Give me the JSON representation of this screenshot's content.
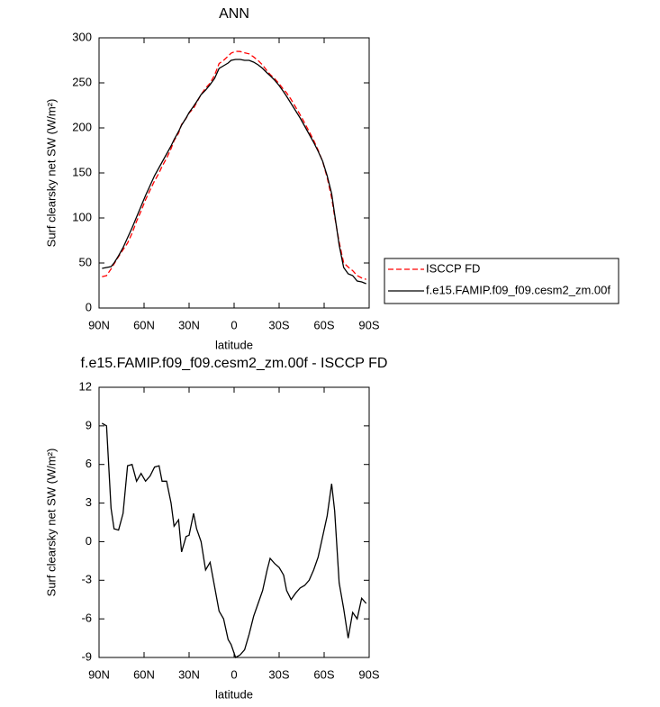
{
  "chart_data": [
    {
      "type": "line",
      "title": "ANN",
      "xlabel": "latitude",
      "ylabel": "Surf clearsky net SW (W/m²)",
      "x": [
        88,
        85,
        82,
        80,
        77,
        74,
        71,
        68,
        65,
        62,
        59,
        56,
        53,
        50,
        48,
        45,
        42,
        40,
        37,
        35,
        32,
        30,
        27,
        25,
        22,
        19,
        16,
        13,
        10,
        7,
        4,
        2,
        -1,
        -4,
        -7,
        -10,
        -13,
        -16,
        -19,
        -22,
        -24,
        -27,
        -30,
        -33,
        -35,
        -38,
        -41,
        -44,
        -47,
        -50,
        -53,
        -56,
        -59,
        -62,
        -65,
        -67,
        -70,
        -73,
        -76,
        -79,
        -82,
        -85,
        -88
      ],
      "xlim": [
        90,
        -90
      ],
      "xticks": [
        {
          "value": 90,
          "label": "90N"
        },
        {
          "value": 60,
          "label": "60N"
        },
        {
          "value": 30,
          "label": "30N"
        },
        0,
        {
          "value": -30,
          "label": "30S"
        },
        {
          "value": -60,
          "label": "60S"
        },
        {
          "value": -90,
          "label": "90S"
        }
      ],
      "ylim": [
        0,
        300
      ],
      "yticks": [
        0,
        50,
        100,
        150,
        200,
        250,
        300
      ],
      "legend": "right",
      "series": [
        {
          "name": "ISCCP FD",
          "color": "#ff0000",
          "dashed": true,
          "values": [
            34.8,
            36.0,
            43.4,
            49.0,
            57.1,
            64.8,
            72.1,
            83.0,
            96.3,
            107.7,
            120.3,
            130.9,
            141.2,
            150.1,
            157.3,
            166.3,
            177.0,
            185.8,
            194.3,
            203.8,
            210.6,
            216.5,
            221.8,
            228.0,
            237.0,
            244.2,
            249.6,
            258.5,
            271.4,
            275.0,
            279.6,
            283.0,
            285.0,
            284.8,
            283.4,
            282.2,
            278.8,
            274.8,
            269.8,
            263.2,
            259.3,
            254.7,
            249.0,
            242.6,
            238.8,
            231.5,
            223.0,
            214.6,
            205.4,
            196.0,
            186.2,
            175.2,
            162.6,
            145.0,
            122.5,
            101.6,
            73.2,
            50.2,
            45.5,
            41.5,
            36.0,
            33.4,
            31.8
          ]
        },
        {
          "name": "f.e15.FAMIP.f09_f09.cesm2_zm.00f",
          "color": "#000000",
          "dashed": false,
          "values": [
            44,
            45,
            46,
            50,
            58,
            67,
            78,
            89,
            101,
            113,
            125,
            136,
            147,
            156,
            162,
            171,
            180,
            187,
            196,
            203,
            211,
            217,
            224,
            229,
            237,
            242,
            248,
            255,
            266,
            269,
            272,
            275,
            276,
            276,
            275,
            275,
            273,
            270,
            266,
            261,
            258,
            253,
            247,
            240,
            235,
            227,
            219,
            211,
            202,
            193,
            184,
            174,
            163,
            147,
            127,
            104,
            70,
            45,
            38,
            36,
            30,
            29,
            27
          ]
        }
      ]
    },
    {
      "type": "line",
      "title": "f.e15.FAMIP.f09_f09.cesm2_zm.00f - ISCCP FD",
      "xlabel": "latitude",
      "ylabel": "Surf clearsky net SW (W/m²)",
      "x": [
        88,
        85,
        82,
        80,
        77,
        74,
        71,
        68,
        65,
        62,
        59,
        56,
        53,
        50,
        48,
        45,
        42,
        40,
        37,
        35,
        32,
        30,
        27,
        25,
        22,
        19,
        16,
        13,
        10,
        7,
        4,
        2,
        -1,
        -4,
        -7,
        -10,
        -13,
        -16,
        -19,
        -22,
        -24,
        -27,
        -30,
        -33,
        -35,
        -38,
        -41,
        -44,
        -47,
        -50,
        -53,
        -56,
        -59,
        -62,
        -65,
        -67,
        -70,
        -73,
        -76,
        -79,
        -82,
        -85,
        -88
      ],
      "xlim": [
        90,
        -90
      ],
      "xticks": [
        {
          "value": 90,
          "label": "90N"
        },
        {
          "value": 60,
          "label": "60N"
        },
        {
          "value": 30,
          "label": "30N"
        },
        0,
        {
          "value": -30,
          "label": "30S"
        },
        {
          "value": -60,
          "label": "60S"
        },
        {
          "value": -90,
          "label": "90S"
        }
      ],
      "ylim": [
        -9,
        12
      ],
      "yticks": [
        -9,
        -6,
        -3,
        0,
        3,
        6,
        9,
        12
      ],
      "color": "#000000",
      "values": [
        9.2,
        9.0,
        2.6,
        1.0,
        0.9,
        2.2,
        5.9,
        6.0,
        4.7,
        5.3,
        4.7,
        5.1,
        5.8,
        5.9,
        4.7,
        4.7,
        3.0,
        1.2,
        1.7,
        -0.8,
        0.4,
        0.5,
        2.2,
        1.0,
        0.0,
        -2.2,
        -1.6,
        -3.5,
        -5.4,
        -6.0,
        -7.6,
        -8.0,
        -9.0,
        -8.8,
        -8.4,
        -7.2,
        -5.8,
        -4.8,
        -3.8,
        -2.2,
        -1.3,
        -1.7,
        -2.0,
        -2.6,
        -3.8,
        -4.5,
        -4.0,
        -3.6,
        -3.4,
        -3.0,
        -2.2,
        -1.2,
        0.4,
        2.0,
        4.5,
        2.4,
        -3.2,
        -5.2,
        -7.5,
        -5.5,
        -6.0,
        -4.4,
        -4.8
      ]
    }
  ]
}
